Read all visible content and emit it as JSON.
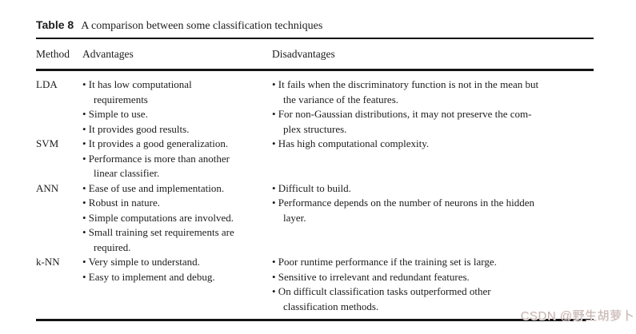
{
  "watermark": "CSDN @野生胡萝卜",
  "table": {
    "label": "Table 8",
    "caption": "A comparison between some classification techniques",
    "bullet": "•",
    "columns": [
      "Method",
      "Advantages",
      "Disadvantages"
    ],
    "rows": [
      {
        "method": "LDA",
        "advantages": [
          [
            "It has low computational",
            "requirements"
          ],
          [
            "Simple to use."
          ],
          [
            "It provides good results."
          ]
        ],
        "disadvantages": [
          [
            "It fails when the discriminatory function is not in the mean but",
            "the variance of the features."
          ],
          [
            "For non-Gaussian distributions, it may not preserve the com-",
            "plex structures."
          ]
        ]
      },
      {
        "method": "SVM",
        "advantages": [
          [
            "It provides a good generalization."
          ],
          [
            "Performance is more than another",
            "linear classifier."
          ]
        ],
        "disadvantages": [
          [
            "Has high computational complexity."
          ]
        ]
      },
      {
        "method": "ANN",
        "advantages": [
          [
            "Ease of use and implementation."
          ],
          [
            "Robust in nature."
          ],
          [
            "Simple computations are involved."
          ],
          [
            "Small training set requirements are",
            "required."
          ]
        ],
        "disadvantages": [
          [
            "Difficult to build."
          ],
          [
            "Performance depends on the number of neurons in the hidden",
            "layer."
          ]
        ]
      },
      {
        "method": "k-NN",
        "advantages": [
          [
            "Very simple to understand."
          ],
          [
            "Easy to implement and debug."
          ]
        ],
        "disadvantages": [
          [
            "Poor runtime performance if the training set is large."
          ],
          [
            "Sensitive to irrelevant and redundant features."
          ],
          [
            "On difficult classification tasks outperformed other",
            "classification methods."
          ]
        ]
      }
    ]
  }
}
